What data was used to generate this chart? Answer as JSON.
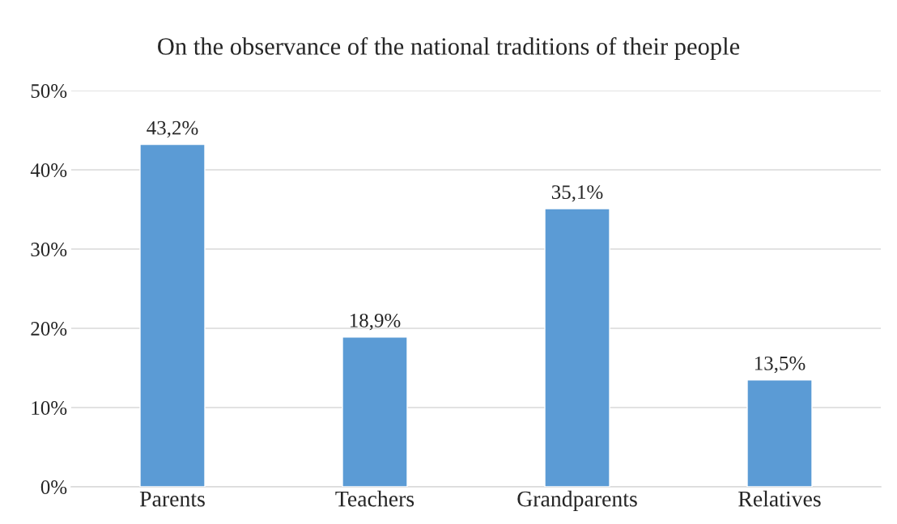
{
  "chart_data": {
    "type": "bar",
    "title": "On the observance of the national traditions of their people",
    "categories": [
      "Parents",
      "Teachers",
      "Grandparents",
      "Relatives"
    ],
    "values": [
      43.2,
      18.9,
      35.1,
      13.5
    ],
    "value_labels": [
      "43,2%",
      "18,9%",
      "35,1%",
      "13,5%"
    ],
    "color": "#5b9bd5",
    "ylim": [
      0,
      50
    ],
    "yticks": [
      {
        "value": 0,
        "label": "0%"
      },
      {
        "value": 10,
        "label": "10%"
      },
      {
        "value": 20,
        "label": "20%"
      },
      {
        "value": 30,
        "label": "30%"
      },
      {
        "value": 40,
        "label": "40%"
      },
      {
        "value": 50,
        "label": "50%"
      }
    ],
    "grid": "y",
    "legend": false
  }
}
